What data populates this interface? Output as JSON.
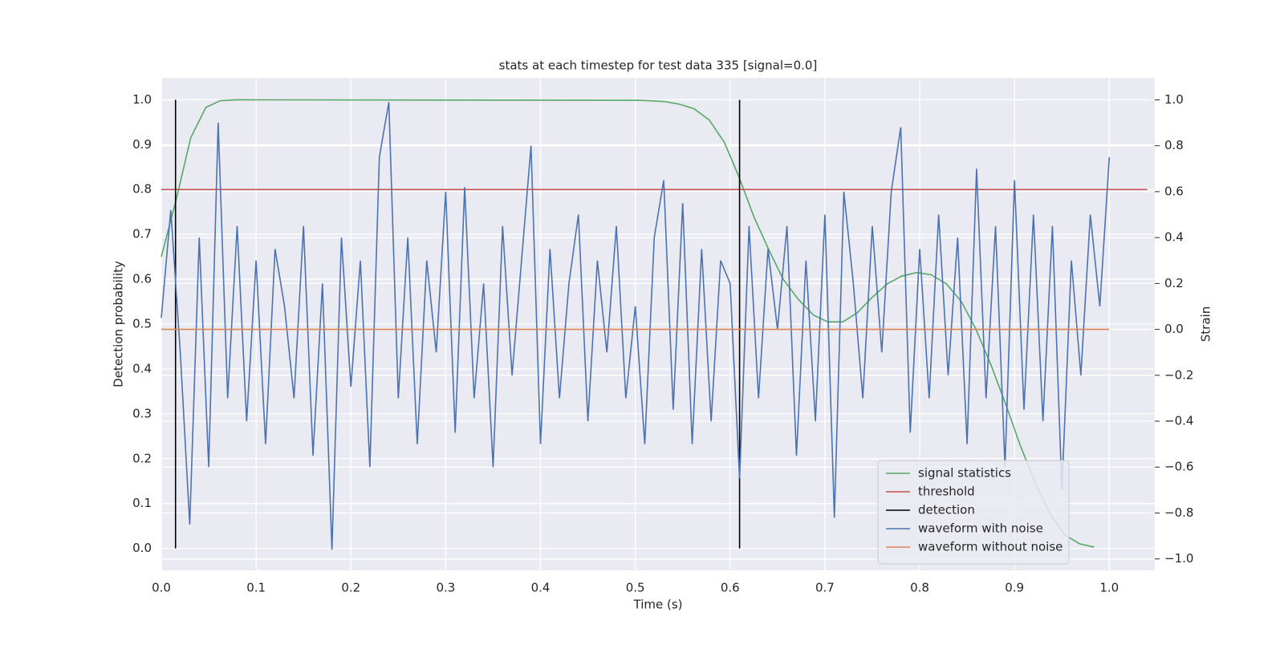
{
  "chart_data": {
    "type": "line",
    "title": "stats at each timestep for test data 335 [signal=0.0]",
    "xlabel": "Time (s)",
    "ylabel": "Detection probability",
    "y2label": "Strain",
    "xlim": [
      0,
      1.048
    ],
    "ylim": [
      -0.049,
      1.049
    ],
    "y2lim": [
      -1.05,
      1.096
    ],
    "xticks": [
      {
        "value": 0,
        "label": "0.0"
      },
      0.1,
      0.2,
      0.3,
      0.4,
      0.5,
      0.6,
      0.7,
      0.8,
      0.9,
      {
        "value": 1,
        "label": "1.0"
      }
    ],
    "yticks": [
      {
        "value": 0,
        "label": "0.0"
      },
      0.1,
      0.2,
      0.3,
      0.4,
      0.5,
      0.6,
      0.7,
      0.8,
      0.9,
      {
        "value": 1,
        "label": "1.0"
      }
    ],
    "y2ticks": [
      {
        "value": -1,
        "label": "−1.0"
      },
      {
        "value": -0.8,
        "label": "−0.8"
      },
      {
        "value": -0.6,
        "label": "−0.6"
      },
      {
        "value": -0.4,
        "label": "−0.4"
      },
      {
        "value": -0.2,
        "label": "−0.2"
      },
      {
        "value": 0,
        "label": "0.0"
      },
      0.2,
      0.4,
      0.6,
      0.8,
      {
        "value": 1,
        "label": "1.0"
      }
    ],
    "grid": true,
    "legend": "lower right",
    "series": [
      {
        "name": "signal statistics",
        "color": "#55a868",
        "axis": "y",
        "x": [
          0,
          0.016,
          0.031,
          0.047,
          0.062,
          0.078,
          0.5,
          0.516,
          0.531,
          0.547,
          0.562,
          0.578,
          0.594,
          0.609,
          0.625,
          0.641,
          0.656,
          0.672,
          0.688,
          0.703,
          0.719,
          0.734,
          0.75,
          0.766,
          0.781,
          0.797,
          0.812,
          0.828,
          0.844,
          0.859,
          0.875,
          0.891,
          0.906,
          0.922,
          0.938,
          0.953,
          0.969,
          0.984
        ],
        "values": [
          0.65,
          0.78,
          0.915,
          0.983,
          0.998,
          1.0,
          0.999,
          0.998,
          0.996,
          0.99,
          0.98,
          0.955,
          0.905,
          0.83,
          0.74,
          0.665,
          0.6,
          0.555,
          0.52,
          0.505,
          0.505,
          0.525,
          0.56,
          0.59,
          0.607,
          0.615,
          0.61,
          0.59,
          0.55,
          0.49,
          0.41,
          0.32,
          0.23,
          0.145,
          0.075,
          0.03,
          0.01,
          0.003
        ]
      },
      {
        "name": "threshold",
        "color": "#c44e52",
        "axis": "y",
        "x": [
          0,
          1.04
        ],
        "values": [
          0.8,
          0.8
        ]
      },
      {
        "name": "detection",
        "color": "#000000",
        "axis": "y",
        "x": [
          0.015,
          0.015,
          null,
          0.61,
          0.61
        ],
        "values": [
          0,
          1,
          null,
          0,
          1
        ]
      },
      {
        "name": "waveform with noise",
        "color": "#4c72b0",
        "axis": "y2",
        "x": [
          0,
          0.01,
          0.02,
          0.03,
          0.04,
          0.05,
          0.06,
          0.07,
          0.08,
          0.09,
          0.1,
          0.11,
          0.12,
          0.13,
          0.14,
          0.15,
          0.16,
          0.17,
          0.18,
          0.19,
          0.2,
          0.21,
          0.22,
          0.23,
          0.24,
          0.25,
          0.26,
          0.27,
          0.28,
          0.29,
          0.3,
          0.31,
          0.32,
          0.33,
          0.34,
          0.35,
          0.36,
          0.37,
          0.38,
          0.39,
          0.4,
          0.41,
          0.42,
          0.43,
          0.44,
          0.45,
          0.46,
          0.47,
          0.48,
          0.49,
          0.5,
          0.51,
          0.52,
          0.53,
          0.54,
          0.55,
          0.56,
          0.57,
          0.58,
          0.59,
          0.6,
          0.61,
          0.62,
          0.63,
          0.64,
          0.65,
          0.66,
          0.67,
          0.68,
          0.69,
          0.7,
          0.71,
          0.72,
          0.73,
          0.74,
          0.75,
          0.76,
          0.77,
          0.78,
          0.79,
          0.8,
          0.81,
          0.82,
          0.83,
          0.84,
          0.85,
          0.86,
          0.87,
          0.88,
          0.89,
          0.9,
          0.91,
          0.92,
          0.93,
          0.94,
          0.95,
          0.96,
          0.97,
          0.98,
          0.99,
          1.0
        ],
        "values": [
          0.05,
          0.52,
          -0.1,
          -0.85,
          0.4,
          -0.6,
          0.9,
          -0.3,
          0.45,
          -0.4,
          0.3,
          -0.5,
          0.35,
          0.1,
          -0.3,
          0.45,
          -0.55,
          0.2,
          -0.96,
          0.4,
          -0.25,
          0.3,
          -0.6,
          0.75,
          0.99,
          -0.3,
          0.4,
          -0.5,
          0.3,
          -0.1,
          0.6,
          -0.45,
          0.62,
          -0.3,
          0.2,
          -0.6,
          0.45,
          -0.2,
          0.3,
          0.8,
          -0.5,
          0.35,
          -0.3,
          0.2,
          0.5,
          -0.4,
          0.3,
          -0.1,
          0.45,
          -0.3,
          0.1,
          -0.5,
          0.4,
          0.65,
          -0.35,
          0.55,
          -0.5,
          0.35,
          -0.4,
          0.3,
          0.2,
          -0.65,
          0.45,
          -0.3,
          0.35,
          0.0,
          0.45,
          -0.55,
          0.3,
          -0.4,
          0.5,
          -0.82,
          0.6,
          0.2,
          -0.3,
          0.45,
          -0.1,
          0.6,
          0.88,
          -0.45,
          0.35,
          -0.3,
          0.5,
          -0.2,
          0.4,
          -0.5,
          0.7,
          -0.3,
          0.45,
          -0.6,
          0.65,
          -0.35,
          0.5,
          -0.4,
          0.45,
          -0.7,
          0.3,
          -0.2,
          0.5,
          0.1,
          0.75
        ]
      },
      {
        "name": "waveform without noise",
        "color": "#dd8452",
        "axis": "y2",
        "x": [
          0,
          1.0
        ],
        "values": [
          0,
          0
        ]
      }
    ]
  }
}
